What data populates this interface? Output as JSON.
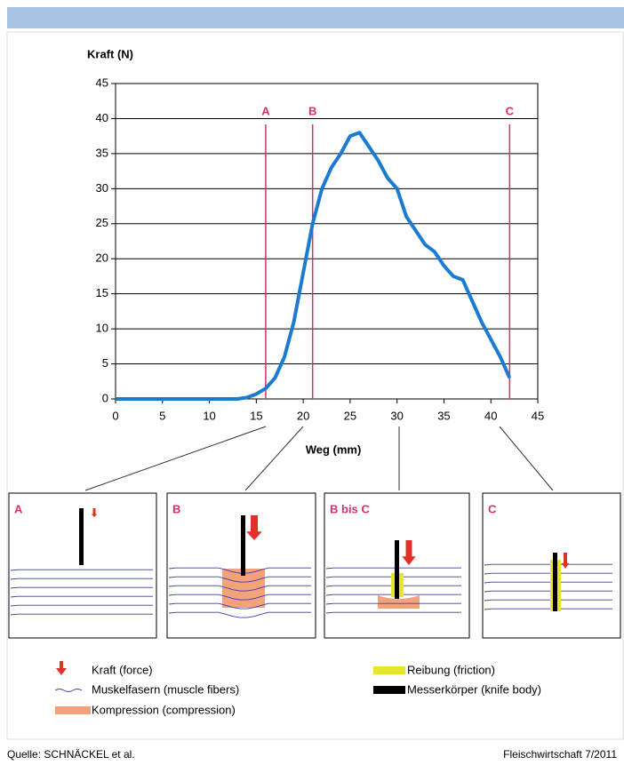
{
  "chart_data": {
    "type": "line",
    "x_label": "Weg (mm)",
    "y_label": "Kraft (N)",
    "series": [
      {
        "color": "#1a7bd0",
        "x": [
          0,
          5,
          10,
          13,
          14,
          15,
          16,
          17,
          18,
          19,
          20,
          21,
          22,
          23,
          24,
          25,
          26,
          27,
          28,
          29,
          30,
          31,
          32,
          33,
          34,
          35,
          36,
          37,
          38,
          39,
          40,
          41,
          42
        ],
        "values": [
          0,
          0,
          0,
          0,
          0.2,
          0.7,
          1.5,
          3,
          6,
          11,
          18,
          25,
          30,
          33,
          35,
          37.5,
          38,
          36,
          34,
          31.5,
          30,
          26,
          24,
          22,
          21,
          19,
          17.5,
          17,
          14,
          11,
          8.5,
          6,
          3
        ]
      }
    ],
    "xlim": [
      0,
      45
    ],
    "ylim": [
      0,
      45
    ],
    "xticks": [
      0,
      5,
      10,
      15,
      20,
      25,
      30,
      35,
      40,
      45
    ],
    "yticks": [
      0,
      5,
      10,
      15,
      20,
      25,
      30,
      35,
      40,
      45
    ],
    "grid": true,
    "annotations": [
      {
        "label": "A",
        "x": 16,
        "color": "#d4306e"
      },
      {
        "label": "B",
        "x": 21,
        "color": "#d4306e"
      },
      {
        "label": "C",
        "x": 42,
        "color": "#d4306e"
      }
    ]
  },
  "panels": [
    {
      "label": "A"
    },
    {
      "label": "B"
    },
    {
      "label": "B bis C"
    },
    {
      "label": "C"
    }
  ],
  "legend": [
    "Kraft (force)",
    "Muskelfasern (muscle fibers)",
    "Kompression (compression)",
    "Reibung (friction)",
    "Messerkörper (knife body)"
  ],
  "footer": {
    "source": "Quelle: SCHNÄCKEL et al.",
    "journal": "Fleischwirtschaft 7/2011"
  }
}
